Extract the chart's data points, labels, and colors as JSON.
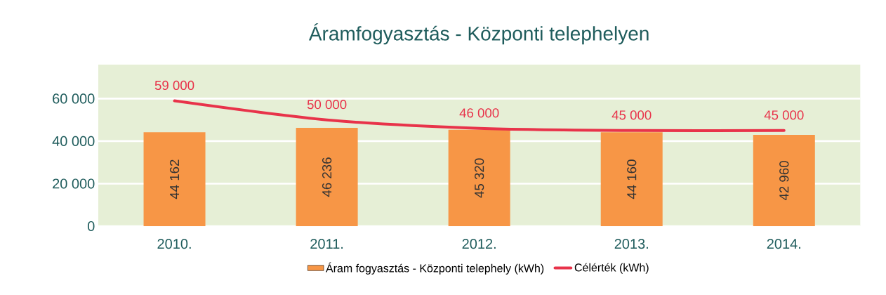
{
  "chart_data": {
    "type": "bar",
    "title": "Áramfogyasztás - Központi telephelyen",
    "categories": [
      "2010.",
      "2011.",
      "2012.",
      "2013.",
      "2014."
    ],
    "series": [
      {
        "name": "Áram fogyasztás - Központi telephely (kWh)",
        "color": "#f79646",
        "values": [
          44162,
          46236,
          45320,
          44160,
          42960
        ],
        "value_labels": [
          "44 162",
          "46 236",
          "45 320",
          "44 160",
          "42 960"
        ]
      },
      {
        "name": "Célérték (kWh)",
        "type": "line",
        "color": "#e8334a",
        "values": [
          59000,
          50000,
          46000,
          45000,
          45000
        ],
        "value_labels": [
          "59 000",
          "50 000",
          "46 000",
          "45 000",
          "45 000"
        ]
      }
    ],
    "ylim": [
      0,
      76000
    ],
    "yticks": [
      {
        "value": 0,
        "label": "0"
      },
      {
        "value": 20000,
        "label": "20 000"
      },
      {
        "value": 40000,
        "label": "40 000"
      },
      {
        "value": 60000,
        "label": "60 000"
      }
    ],
    "grid": "y",
    "legend": "bottom"
  }
}
